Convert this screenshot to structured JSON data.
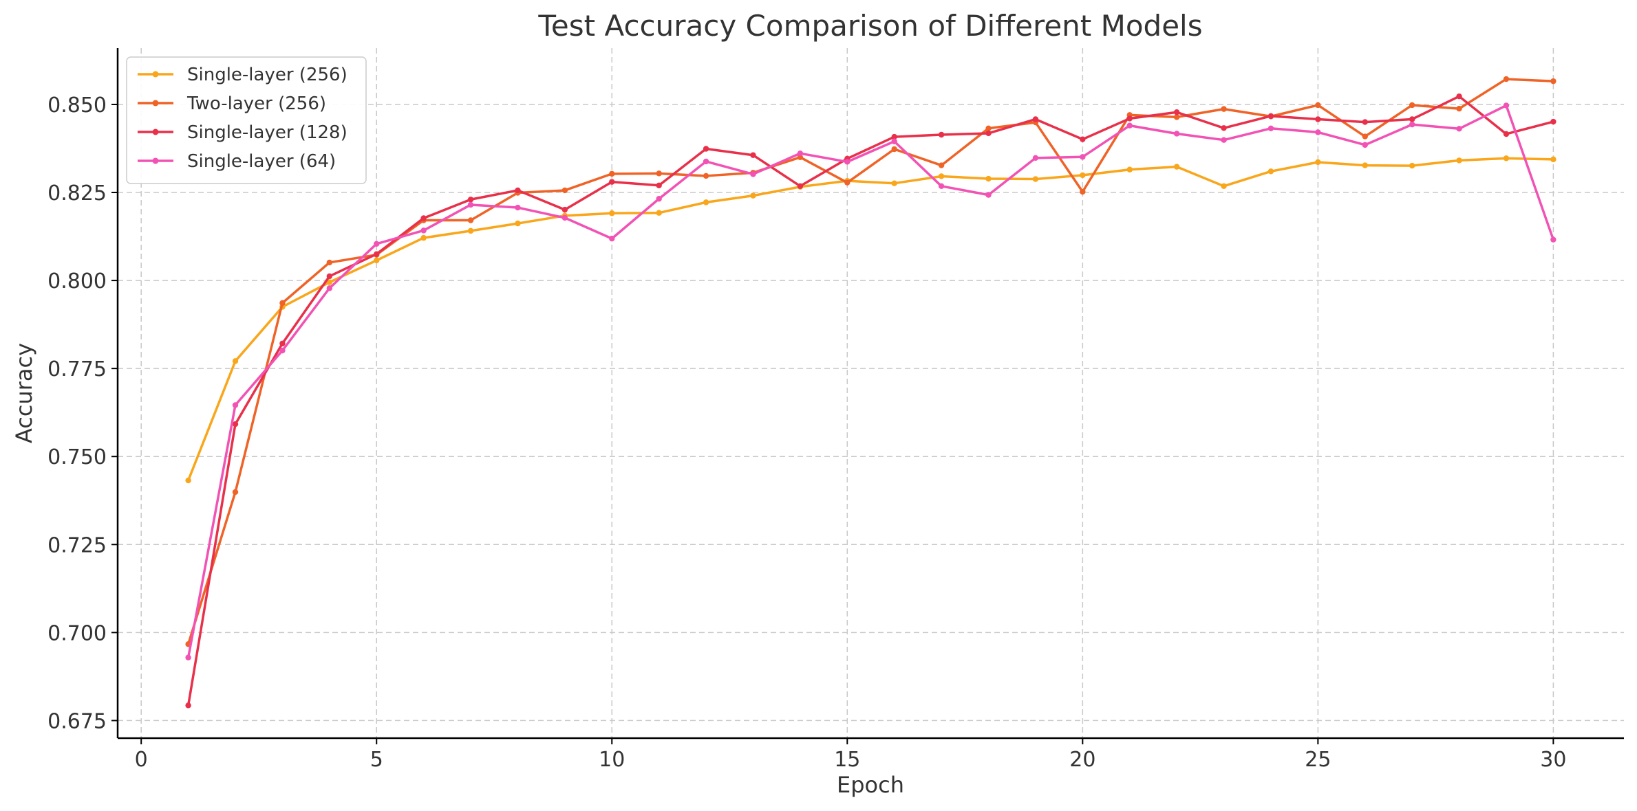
{
  "chart_data": {
    "type": "line",
    "title": "Test Accuracy Comparison of Different Models",
    "xlabel": "Epoch",
    "ylabel": "Accuracy",
    "xlim": [
      -0.5,
      31.5
    ],
    "ylim": [
      0.67,
      0.866
    ],
    "xticks": [
      0,
      5,
      10,
      15,
      20,
      25,
      30
    ],
    "yticks": [
      0.675,
      0.7,
      0.725,
      0.75,
      0.775,
      0.8,
      0.825,
      0.85
    ],
    "ytick_labels": [
      "0.675",
      "0.700",
      "0.725",
      "0.750",
      "0.775",
      "0.800",
      "0.825",
      "0.850"
    ],
    "grid": true,
    "legend_position": "top-left",
    "x": [
      1,
      2,
      3,
      4,
      5,
      6,
      7,
      8,
      9,
      10,
      11,
      12,
      13,
      14,
      15,
      16,
      17,
      18,
      19,
      20,
      21,
      22,
      23,
      24,
      25,
      26,
      27,
      28,
      29,
      30
    ],
    "series": [
      {
        "name": "Single-layer (256)",
        "color": "#f9a61a",
        "values": [
          0.7432,
          0.7771,
          0.7925,
          0.7995,
          0.8057,
          0.8121,
          0.8141,
          0.8162,
          0.8184,
          0.8191,
          0.8192,
          0.8222,
          0.8241,
          0.8266,
          0.8283,
          0.8276,
          0.8296,
          0.8289,
          0.8288,
          0.8299,
          0.8315,
          0.8323,
          0.8268,
          0.831,
          0.8336,
          0.8327,
          0.8326,
          0.8341,
          0.8347,
          0.8344
        ]
      },
      {
        "name": "Two-layer (256)",
        "color": "#ef6327",
        "values": [
          0.6967,
          0.7399,
          0.7936,
          0.8051,
          0.8073,
          0.8171,
          0.8171,
          0.8249,
          0.8256,
          0.8303,
          0.8304,
          0.8297,
          0.8306,
          0.835,
          0.8278,
          0.8373,
          0.8327,
          0.8432,
          0.8449,
          0.8252,
          0.847,
          0.8464,
          0.8487,
          0.8466,
          0.8498,
          0.8409,
          0.8498,
          0.8488,
          0.8572,
          0.8566
        ]
      },
      {
        "name": "Single-layer (128)",
        "color": "#e8304a",
        "values": [
          0.6793,
          0.7592,
          0.7821,
          0.8012,
          0.8075,
          0.8177,
          0.823,
          0.8256,
          0.8201,
          0.828,
          0.827,
          0.8374,
          0.8356,
          0.8268,
          0.8346,
          0.8408,
          0.8414,
          0.8418,
          0.8458,
          0.8401,
          0.846,
          0.8478,
          0.8433,
          0.8467,
          0.8458,
          0.845,
          0.8458,
          0.8523,
          0.8416,
          0.8451
        ]
      },
      {
        "name": "Single-layer (64)",
        "color": "#f252b4",
        "values": [
          0.6929,
          0.7646,
          0.7801,
          0.7978,
          0.8104,
          0.8142,
          0.8215,
          0.8207,
          0.8178,
          0.8119,
          0.8232,
          0.8338,
          0.8302,
          0.8361,
          0.8337,
          0.8395,
          0.8268,
          0.8243,
          0.8348,
          0.8351,
          0.844,
          0.8417,
          0.8399,
          0.8432,
          0.8421,
          0.8385,
          0.8443,
          0.8431,
          0.8497,
          0.8116
        ]
      }
    ]
  }
}
